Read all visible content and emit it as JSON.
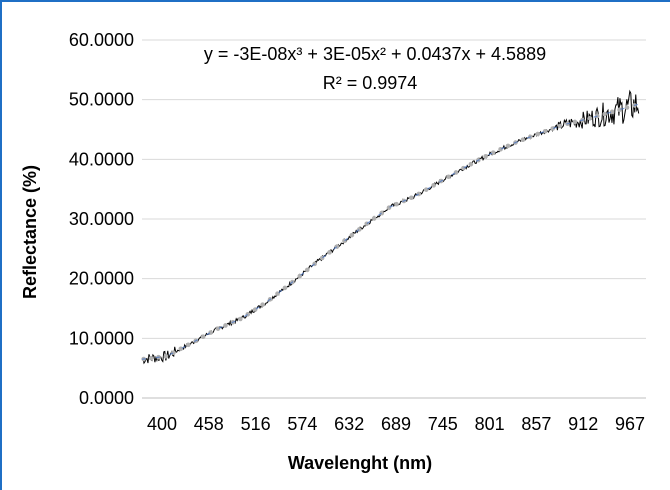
{
  "chart_data": {
    "type": "line",
    "title": "",
    "xlabel": "Wavelenght (nm)",
    "ylabel": "Reflectance (%)",
    "ylim": [
      0,
      60
    ],
    "xlim": [
      400,
      1010
    ],
    "grid": "horizontal",
    "legend": "none",
    "x_tick_labels": [
      "400",
      "458",
      "516",
      "574",
      "632",
      "689",
      "745",
      "801",
      "857",
      "912",
      "967"
    ],
    "y_tick_labels": [
      "0.0000",
      "10.0000",
      "20.0000",
      "30.0000",
      "40.0000",
      "50.0000",
      "60.0000"
    ],
    "trendline": {
      "type": "polynomial",
      "order": 3,
      "equation": "y = -3E-08x³ + 3E-05x² + 0.0437x + 4.5889",
      "r_squared": "R² = 0.9974",
      "color": "#b0b0b0",
      "style": "dotted"
    },
    "series": [
      {
        "color": "#000000",
        "x": [
          400,
          430,
          460,
          490,
          520,
          550,
          580,
          610,
          640,
          670,
          700,
          730,
          760,
          790,
          820,
          850,
          880,
          910,
          940,
          970,
          1000
        ],
        "values": [
          6.5,
          7.0,
          9.2,
          11.5,
          13.3,
          16.0,
          19.2,
          22.6,
          25.8,
          29.0,
          32.0,
          33.8,
          36.2,
          38.6,
          40.8,
          42.7,
          44.3,
          45.8,
          46.8,
          48.0,
          49.2
        ]
      }
    ]
  },
  "colors": {
    "border_accent": "#1f6fc5",
    "gridline": "#d9d9d9",
    "series_line": "#000000",
    "trend_dots": "#b0b0b0",
    "trend_dash": "#4472c4"
  }
}
